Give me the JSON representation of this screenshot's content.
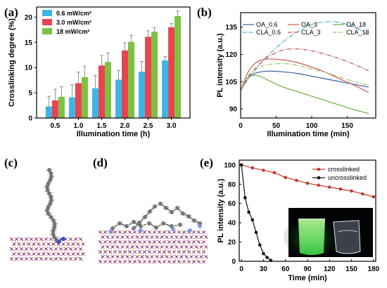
{
  "panels": {
    "a": "(a)",
    "b": "(b)",
    "c": "(c)",
    "d": "(d)",
    "e": "(e)"
  },
  "chart_data": [
    {
      "id": "a",
      "type": "bar",
      "xlabel": "Illumination time (h)",
      "ylabel": "Crosslinking degree (%)",
      "ylim": [
        0,
        22
      ],
      "yticks": [
        0,
        5,
        10,
        15,
        20
      ],
      "categories": [
        "0.5",
        "1.0",
        "1.5",
        "2.0",
        "2.5",
        "3.0"
      ],
      "legend_position": "top-left",
      "series": [
        {
          "name": "0.6 mW/cm²",
          "color": "#3fb5e5",
          "values": [
            2.3,
            4.1,
            5.9,
            7.6,
            9.2,
            11.4
          ],
          "errors": [
            2.0,
            2.5,
            2.5,
            1.8,
            2.0,
            0.8
          ]
        },
        {
          "name": "3.0 mW/cm²",
          "color": "#e8444f",
          "values": [
            3.5,
            6.9,
            10.4,
            13.4,
            16.1,
            18.0
          ],
          "errors": [
            2.2,
            2.2,
            2.0,
            1.5,
            1.2,
            0.7
          ]
        },
        {
          "name": "18 mW/cm²",
          "color": "#7dc142",
          "values": [
            4.2,
            8.1,
            11.1,
            15.1,
            17.1,
            20.2
          ],
          "errors": [
            2.0,
            2.2,
            1.8,
            1.3,
            0.8,
            1.0
          ]
        }
      ]
    },
    {
      "id": "b",
      "type": "line",
      "xlabel": "Illumination time (min)",
      "ylabel": "PL intensity (a.u.)",
      "xlim": [
        0,
        190
      ],
      "ylim": [
        85,
        143
      ],
      "xticks": [
        0,
        50,
        100,
        150
      ],
      "yticks": [
        90,
        105,
        120,
        135
      ],
      "legend_position": "top",
      "series": [
        {
          "name": "OA_0.6",
          "color": "#3a5fa8",
          "dash": "solid",
          "x": [
            0,
            10,
            20,
            30,
            40,
            60,
            80,
            100,
            120,
            140,
            160,
            180
          ],
          "y": [
            100,
            107,
            109.5,
            110.5,
            110.8,
            110.4,
            109.5,
            108,
            106.5,
            105,
            103.5,
            102
          ]
        },
        {
          "name": "OA_3",
          "color": "#d9534f",
          "dash": "solid",
          "x": [
            0,
            10,
            20,
            30,
            40,
            60,
            80,
            100,
            120,
            140,
            160,
            180
          ],
          "y": [
            100,
            110,
            115,
            117,
            117.5,
            117,
            115.5,
            113,
            110,
            106.5,
            103,
            99
          ]
        },
        {
          "name": "OA_18",
          "color": "#6aae45",
          "dash": "solid",
          "x": [
            0,
            10,
            20,
            30,
            40,
            60,
            80,
            100,
            120,
            140,
            160,
            180
          ],
          "y": [
            100,
            107,
            108.5,
            107.5,
            105.5,
            102,
            99.5,
            97,
            94.5,
            92,
            89.5,
            87.5
          ]
        },
        {
          "name": "CLA_0.6",
          "color": "#3fb5c8",
          "dash": "dashdot",
          "x": [
            0,
            10,
            20,
            30,
            40,
            60,
            80,
            100,
            120,
            140,
            160,
            180
          ],
          "y": [
            100,
            106,
            111,
            116,
            120,
            127,
            132.5,
            136.5,
            138,
            137.5,
            135,
            131
          ]
        },
        {
          "name": "CLA_3",
          "color": "#c0504d",
          "dash": "dashdot",
          "x": [
            0,
            10,
            20,
            30,
            40,
            60,
            80,
            100,
            120,
            140,
            160,
            180
          ],
          "y": [
            100,
            107,
            112,
            116,
            119,
            122.5,
            123,
            122,
            120,
            117.5,
            114.5,
            111
          ]
        },
        {
          "name": "CLA_18",
          "color": "#9ac46a",
          "dash": "dashdot",
          "x": [
            0,
            10,
            20,
            30,
            40,
            60,
            80,
            100,
            120,
            140,
            160,
            180
          ],
          "y": [
            100,
            108,
            111.5,
            113.5,
            114.5,
            115,
            114,
            112,
            110,
            107.5,
            105,
            103
          ]
        }
      ]
    },
    {
      "id": "e",
      "type": "scatter",
      "xlabel": "Time (min)",
      "ylabel": "PL intensity (a.u.)",
      "xlim": [
        -3,
        183
      ],
      "ylim": [
        0,
        105
      ],
      "xticks": [
        0,
        30,
        60,
        90,
        120,
        150,
        180
      ],
      "yticks": [
        0,
        20,
        40,
        60,
        80,
        100
      ],
      "legend_position": "top-right",
      "series": [
        {
          "name": "crosslinked",
          "color": "#c0392b",
          "x": [
            0,
            15,
            30,
            45,
            60,
            75,
            90,
            105,
            120,
            135,
            150,
            165,
            180
          ],
          "y": [
            100,
            97,
            94.5,
            92,
            87,
            84,
            81,
            79,
            77,
            75,
            73,
            70,
            67
          ]
        },
        {
          "name": "uncrosslinked",
          "color": "#111111",
          "x": [
            0,
            5,
            10,
            15,
            20,
            25,
            30,
            35,
            40
          ],
          "y": [
            100,
            66,
            51,
            43,
            30,
            17,
            8,
            4,
            1
          ]
        }
      ]
    }
  ]
}
